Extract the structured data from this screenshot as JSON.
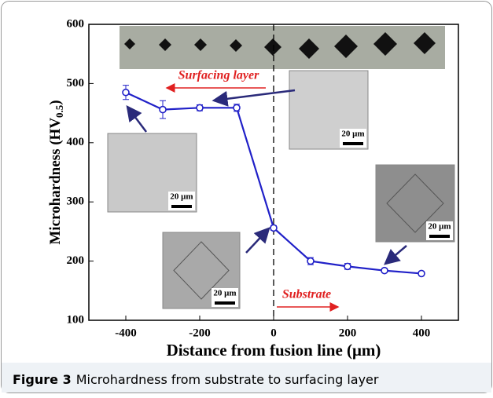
{
  "chart_data": {
    "type": "line",
    "xlabel": "Distance from fusion line (μm)",
    "ylabel": [
      "Microhardness (HV",
      "0.5",
      ")"
    ],
    "x": [
      -400,
      -300,
      -200,
      -100,
      0,
      100,
      200,
      300,
      400
    ],
    "series": [
      {
        "color": "#2020c8",
        "values": [
          485,
          456,
          459,
          459,
          256,
          200,
          191,
          184,
          179
        ],
        "errors": [
          12,
          15,
          5,
          6,
          4,
          6,
          5,
          3,
          3
        ]
      }
    ],
    "xlim": [
      -500,
      500
    ],
    "xticks": [
      -400,
      -200,
      0,
      200,
      400
    ],
    "ylim": [
      100,
      600
    ],
    "yticks": [
      100,
      200,
      300,
      400,
      500,
      600
    ],
    "annotations": [
      "Surfacing layer",
      "Substrate"
    ],
    "image_labels": [
      "20 μm",
      "20 μm",
      "20 μm",
      "20 μm"
    ]
  },
  "caption": {
    "label": "Figure 3",
    "text": "Microhardness from substrate to surfacing layer"
  }
}
